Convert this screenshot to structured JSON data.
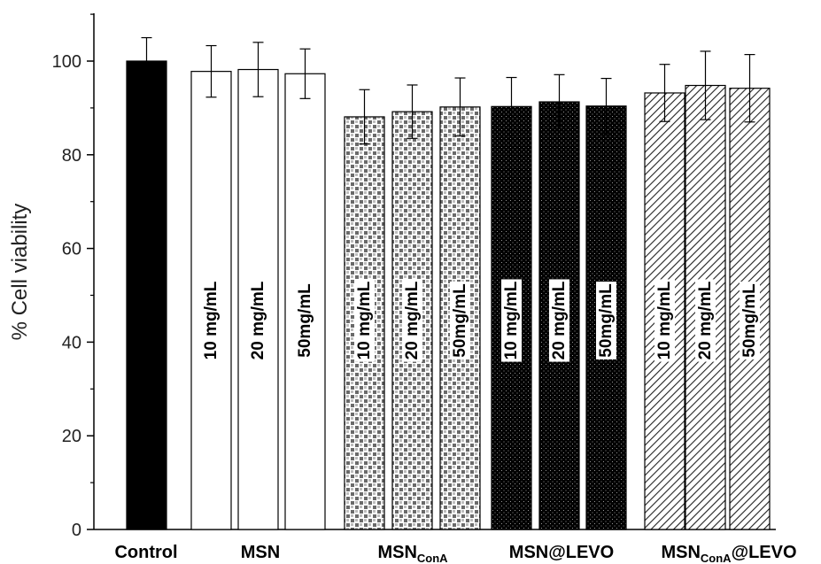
{
  "chart_data": {
    "type": "bar",
    "ylabel": "% Cell viability",
    "ylim": [
      0,
      110
    ],
    "yticks": [
      0,
      20,
      40,
      60,
      80,
      100
    ],
    "groups": [
      {
        "label": "Control",
        "sub": "",
        "suffix": "",
        "pattern": "solid-black"
      },
      {
        "label": "MSN",
        "sub": "",
        "suffix": "",
        "pattern": "white"
      },
      {
        "label": "MSN",
        "sub": "ConA",
        "suffix": "",
        "pattern": "checker"
      },
      {
        "label": "MSN@LEVO",
        "sub": "",
        "suffix": "",
        "pattern": "dots"
      },
      {
        "label": "MSN",
        "sub": "ConA",
        "suffix": "@LEVO",
        "pattern": "hatch"
      }
    ],
    "bars": [
      {
        "group": 0,
        "label": "",
        "value": 100,
        "error": 5
      },
      {
        "group": 1,
        "label": "10 mg/mL",
        "value": 97.8,
        "error": 5.5
      },
      {
        "group": 1,
        "label": "20 mg/mL",
        "value": 98.2,
        "error": 5.8
      },
      {
        "group": 1,
        "label": "50mg/mL",
        "value": 97.3,
        "error": 5.3
      },
      {
        "group": 2,
        "label": "10 mg/mL",
        "value": 88.1,
        "error": 5.8
      },
      {
        "group": 2,
        "label": "20 mg/mL",
        "value": 89.2,
        "error": 5.7
      },
      {
        "group": 2,
        "label": "50mg/mL",
        "value": 90.2,
        "error": 6.2
      },
      {
        "group": 3,
        "label": "10 mg/mL",
        "value": 90.3,
        "error": 6.2
      },
      {
        "group": 3,
        "label": "20 mg/mL",
        "value": 91.3,
        "error": 5.8
      },
      {
        "group": 3,
        "label": "50mg/mL",
        "value": 90.4,
        "error": 5.9
      },
      {
        "group": 4,
        "label": "10 mg/mL",
        "value": 93.2,
        "error": 6.1
      },
      {
        "group": 4,
        "label": "20 mg/mL",
        "value": 94.8,
        "error": 7.3
      },
      {
        "group": 4,
        "label": "50mg/mL",
        "value": 94.2,
        "error": 7.2
      }
    ]
  }
}
